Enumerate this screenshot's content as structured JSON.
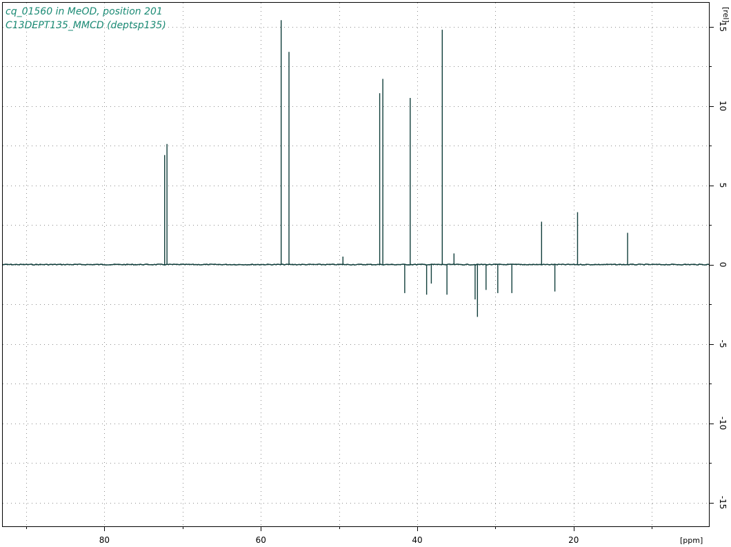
{
  "title": {
    "line1": "cq_01560 in MeOD, position 201",
    "line2": "C13DEPT135_MMCD (deptsp135)"
  },
  "colors": {
    "title": "#1a8a74",
    "spectrum": "#0f3d3a",
    "grid": "#8a8a8a",
    "frame": "#000000"
  },
  "chart_data": {
    "type": "line",
    "xlabel": "[ppm]",
    "ylabel": "[rel]",
    "x_reversed": true,
    "xlim": [
      93,
      2.7
    ],
    "ylim": [
      -16.5,
      16.5
    ],
    "x_ticks": [
      80,
      60,
      40,
      20
    ],
    "y_ticks": [
      15,
      10,
      5,
      0,
      -5,
      -10,
      -15
    ],
    "grid": true,
    "series": [
      {
        "peaks": [
          {
            "x": 72.3,
            "y": 6.9
          },
          {
            "x": 72.0,
            "y": 7.6
          },
          {
            "x": 57.4,
            "y": 15.4
          },
          {
            "x": 56.4,
            "y": 13.4
          },
          {
            "x": 49.5,
            "y": 0.5
          },
          {
            "x": 44.8,
            "y": 10.8
          },
          {
            "x": 44.4,
            "y": 11.7
          },
          {
            "x": 41.6,
            "y": -1.8
          },
          {
            "x": 40.9,
            "y": 10.5
          },
          {
            "x": 38.8,
            "y": -1.9
          },
          {
            "x": 38.2,
            "y": -1.2
          },
          {
            "x": 36.8,
            "y": 14.8
          },
          {
            "x": 36.2,
            "y": -1.9
          },
          {
            "x": 35.3,
            "y": 0.7
          },
          {
            "x": 32.6,
            "y": -2.2
          },
          {
            "x": 32.3,
            "y": -3.3
          },
          {
            "x": 31.2,
            "y": -1.6
          },
          {
            "x": 29.7,
            "y": -1.8
          },
          {
            "x": 27.9,
            "y": -1.8
          },
          {
            "x": 24.1,
            "y": 2.7
          },
          {
            "x": 22.4,
            "y": -1.7
          },
          {
            "x": 19.5,
            "y": 3.3
          },
          {
            "x": 13.1,
            "y": 2.0
          }
        ]
      }
    ]
  }
}
